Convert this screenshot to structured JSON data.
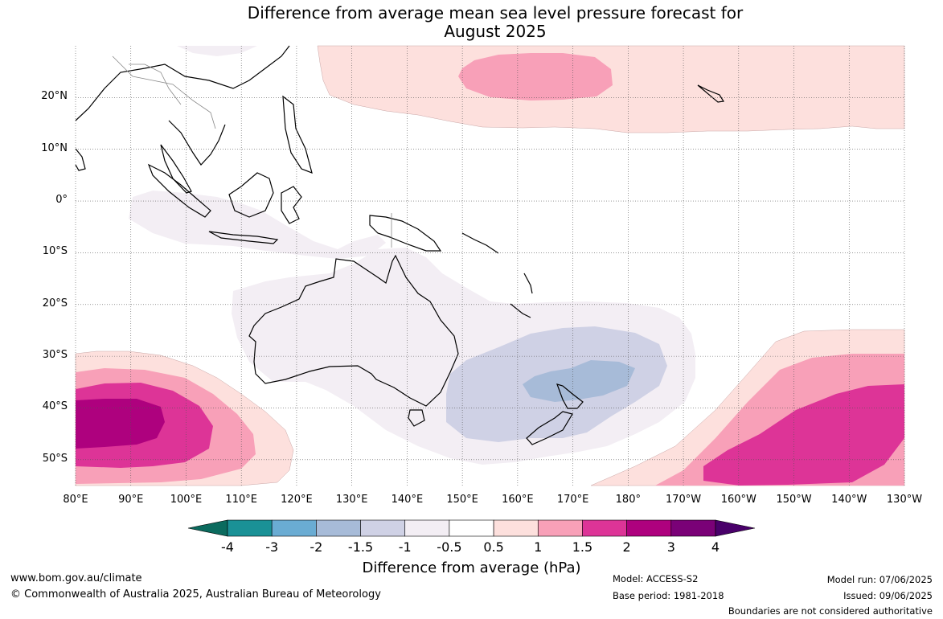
{
  "title": {
    "line1": "Difference from average mean sea level pressure forecast for",
    "line2": "August 2025"
  },
  "map": {
    "projection": "equirectangular",
    "lon_range": [
      80,
      230
    ],
    "lat_range": [
      -55,
      30
    ],
    "graticule": {
      "lon_step": 10,
      "lat_step": 10,
      "style": "dotted"
    },
    "lat_labels": [
      "20°N",
      "10°N",
      "0°",
      "10°S",
      "20°S",
      "30°S",
      "40°S",
      "50°S"
    ],
    "lon_labels": [
      "80°E",
      "90°E",
      "100°E",
      "110°E",
      "120°E",
      "130°E",
      "140°E",
      "150°E",
      "160°E",
      "170°E",
      "180°",
      "170°W",
      "160°W",
      "150°W",
      "140°W",
      "130°W"
    ],
    "coastline_color": "#000000"
  },
  "colorbar": {
    "label": "Difference from average (hPa)",
    "ticks": [
      "-4",
      "-3",
      "-2",
      "-1.5",
      "-1",
      "-0.5",
      "0.5",
      "1",
      "1.5",
      "2",
      "3",
      "4"
    ],
    "colors": [
      "#0b6b5e",
      "#1a9196",
      "#6aacd3",
      "#a7bbd8",
      "#cfd1e5",
      "#f3eef4",
      "#ffffff",
      "#fde0dd",
      "#f8a0b8",
      "#dd3497",
      "#ae017e",
      "#7a0177",
      "#49006a"
    ]
  },
  "footer": {
    "website": "www.bom.gov.au/climate",
    "copyright": "© Commonwealth of Australia 2025, Australian Bureau of Meteorology",
    "model": "Model: ACCESS-S2",
    "base_period": "Base period: 1981-2018",
    "model_run": "Model run: 07/06/2025",
    "issued": "Issued: 09/06/2025",
    "disclaimer": "Boundaries are not considered authoritative"
  }
}
